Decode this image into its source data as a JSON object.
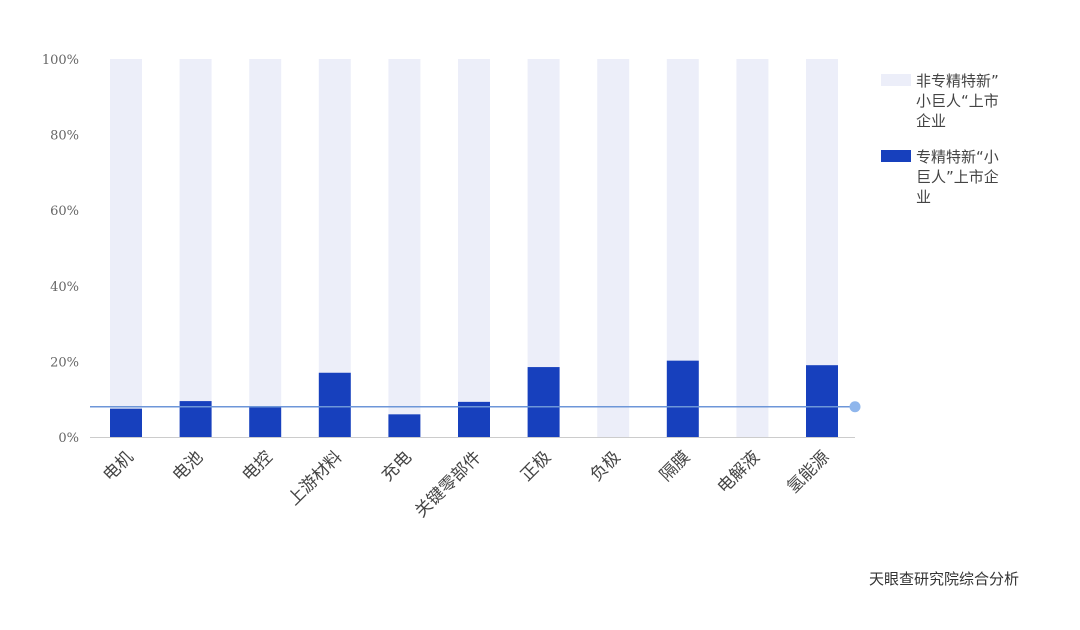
{
  "chart_data": {
    "type": "bar",
    "stacked": true,
    "percent_stacked": true,
    "categories": [
      "电机",
      "电池",
      "电控",
      "上游材料",
      "充电",
      "关键零部件",
      "正极",
      "负极",
      "隔膜",
      "电解液",
      "氢能源"
    ],
    "series": [
      {
        "name": "专精特新“小巨人”上市企业",
        "color": "#1740bd",
        "values": [
          7.5,
          9.5,
          8.0,
          17.0,
          6.0,
          9.3,
          18.5,
          0,
          20.2,
          0,
          19.0
        ]
      },
      {
        "name": "非专精特新”小巨人“上市企业",
        "color": "#eceef9",
        "values": [
          92.5,
          90.5,
          92.0,
          83.0,
          94.0,
          90.7,
          81.5,
          100,
          79.8,
          100,
          81.0
        ]
      }
    ],
    "reference_line": {
      "value": 8,
      "color": "#6d96d8"
    },
    "ylim": [
      0,
      100
    ],
    "yticks": [
      "0%",
      "20%",
      "40%",
      "60%",
      "80%",
      "100%"
    ],
    "ytick_values": [
      0,
      20,
      40,
      60,
      80,
      100
    ],
    "legend_position": "top-right",
    "grid": false,
    "source": "天眼查研究院综合分析"
  }
}
